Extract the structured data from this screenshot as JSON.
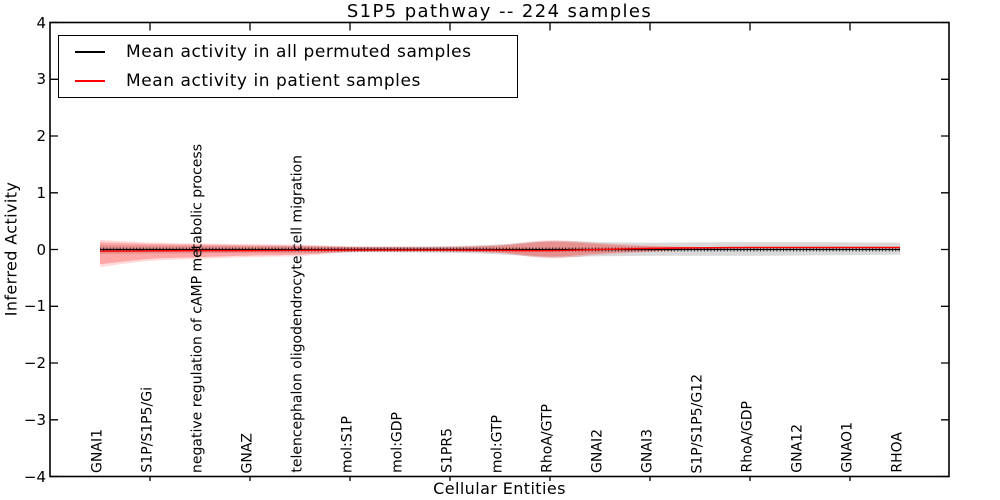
{
  "figure": {
    "title": "S1P5 pathway -- 224 samples",
    "xlabel": "Cellular Entities",
    "ylabel": "Inferred Activity"
  },
  "legend": {
    "items": [
      {
        "label": "Mean activity in all permuted samples",
        "color": "#000000"
      },
      {
        "label": "Mean activity in patient samples",
        "color": "#ff0000"
      }
    ]
  },
  "axes": {
    "y_ticks": [
      {
        "label": "4",
        "value": 4
      },
      {
        "label": "3",
        "value": 3
      },
      {
        "label": "2",
        "value": 2
      },
      {
        "label": "1",
        "value": 1
      },
      {
        "label": "0",
        "value": 0
      },
      {
        "label": "−1",
        "value": -1
      },
      {
        "label": "−2",
        "value": -2
      },
      {
        "label": "−3",
        "value": -3
      },
      {
        "label": "−4",
        "value": -4
      }
    ],
    "y_range": [
      -4,
      4
    ]
  },
  "chart_data": {
    "type": "line",
    "title": "S1P5 pathway -- 224 samples",
    "xlabel": "Cellular Entities",
    "ylabel": "Inferred Activity",
    "ylim": [
      -4,
      4
    ],
    "grid": false,
    "legend_position": "upper left",
    "categories": [
      "GNAI1",
      "S1P/S1P5/Gi",
      "negative regulation of cAMP metabolic process",
      "GNAZ",
      "telencephalon oligodendrocyte cell migration",
      "mol:S1P",
      "mol:GDP",
      "S1PR5",
      "mol:GTP",
      "RhoA/GTP",
      "GNAI2",
      "GNAI3",
      "S1P/S1P5/G12",
      "RhoA/GDP",
      "GNA12",
      "GNAO1",
      "RHOA"
    ],
    "series": [
      {
        "name": "Mean activity in all permuted samples",
        "color": "#000000",
        "values": [
          0,
          0,
          0,
          0,
          0,
          0,
          0,
          0,
          0,
          0,
          0,
          0,
          0,
          0,
          0,
          0,
          0
        ]
      },
      {
        "name": "Mean activity in patient samples",
        "color": "#ff0000",
        "values": [
          -0.03,
          -0.025,
          -0.02,
          -0.02,
          -0.015,
          -0.01,
          -0.01,
          -0.01,
          -0.015,
          -0.02,
          0.0,
          0.02,
          0.03,
          0.035,
          0.035,
          0.035,
          0.035
        ]
      }
    ],
    "bands": [
      {
        "name": "permuted-samples-range",
        "color": "rgba(130,130,130,0.30)",
        "upper": [
          0.08,
          0.07,
          0.065,
          0.06,
          0.06,
          0.05,
          0.05,
          0.06,
          0.09,
          0.15,
          0.13,
          0.12,
          0.125,
          0.13,
          0.13,
          0.125,
          0.12
        ],
        "lower": [
          -0.08,
          -0.07,
          -0.065,
          -0.06,
          -0.06,
          -0.05,
          -0.05,
          -0.06,
          -0.085,
          -0.14,
          -0.12,
          -0.11,
          -0.11,
          -0.11,
          -0.105,
          -0.1,
          -0.09
        ]
      },
      {
        "name": "patient-samples-range-outer",
        "color": "rgba(255,25,25,0.16)",
        "upper": [
          0.17,
          0.125,
          0.105,
          0.095,
          0.085,
          0.055,
          0.05,
          0.05,
          0.08,
          0.165,
          0.115,
          0.07,
          0.045,
          0.035,
          0.035,
          0.035,
          0.035
        ],
        "lower": [
          -0.31,
          -0.2,
          -0.165,
          -0.135,
          -0.115,
          -0.05,
          -0.04,
          -0.04,
          -0.065,
          -0.155,
          -0.09,
          -0.045,
          -0.005,
          0.035,
          0.035,
          0.035,
          0.035
        ]
      },
      {
        "name": "patient-samples-range-inner",
        "color": "rgba(255,25,25,0.26)",
        "upper": [
          0.125,
          0.1,
          0.085,
          0.075,
          0.065,
          0.045,
          0.04,
          0.04,
          0.07,
          0.135,
          0.095,
          0.055,
          0.04,
          0.035,
          0.035,
          0.035,
          0.035
        ],
        "lower": [
          -0.26,
          -0.165,
          -0.135,
          -0.105,
          -0.09,
          -0.04,
          -0.03,
          -0.03,
          -0.055,
          -0.125,
          -0.07,
          -0.03,
          0.005,
          0.035,
          0.035,
          0.035,
          0.035
        ]
      }
    ]
  }
}
